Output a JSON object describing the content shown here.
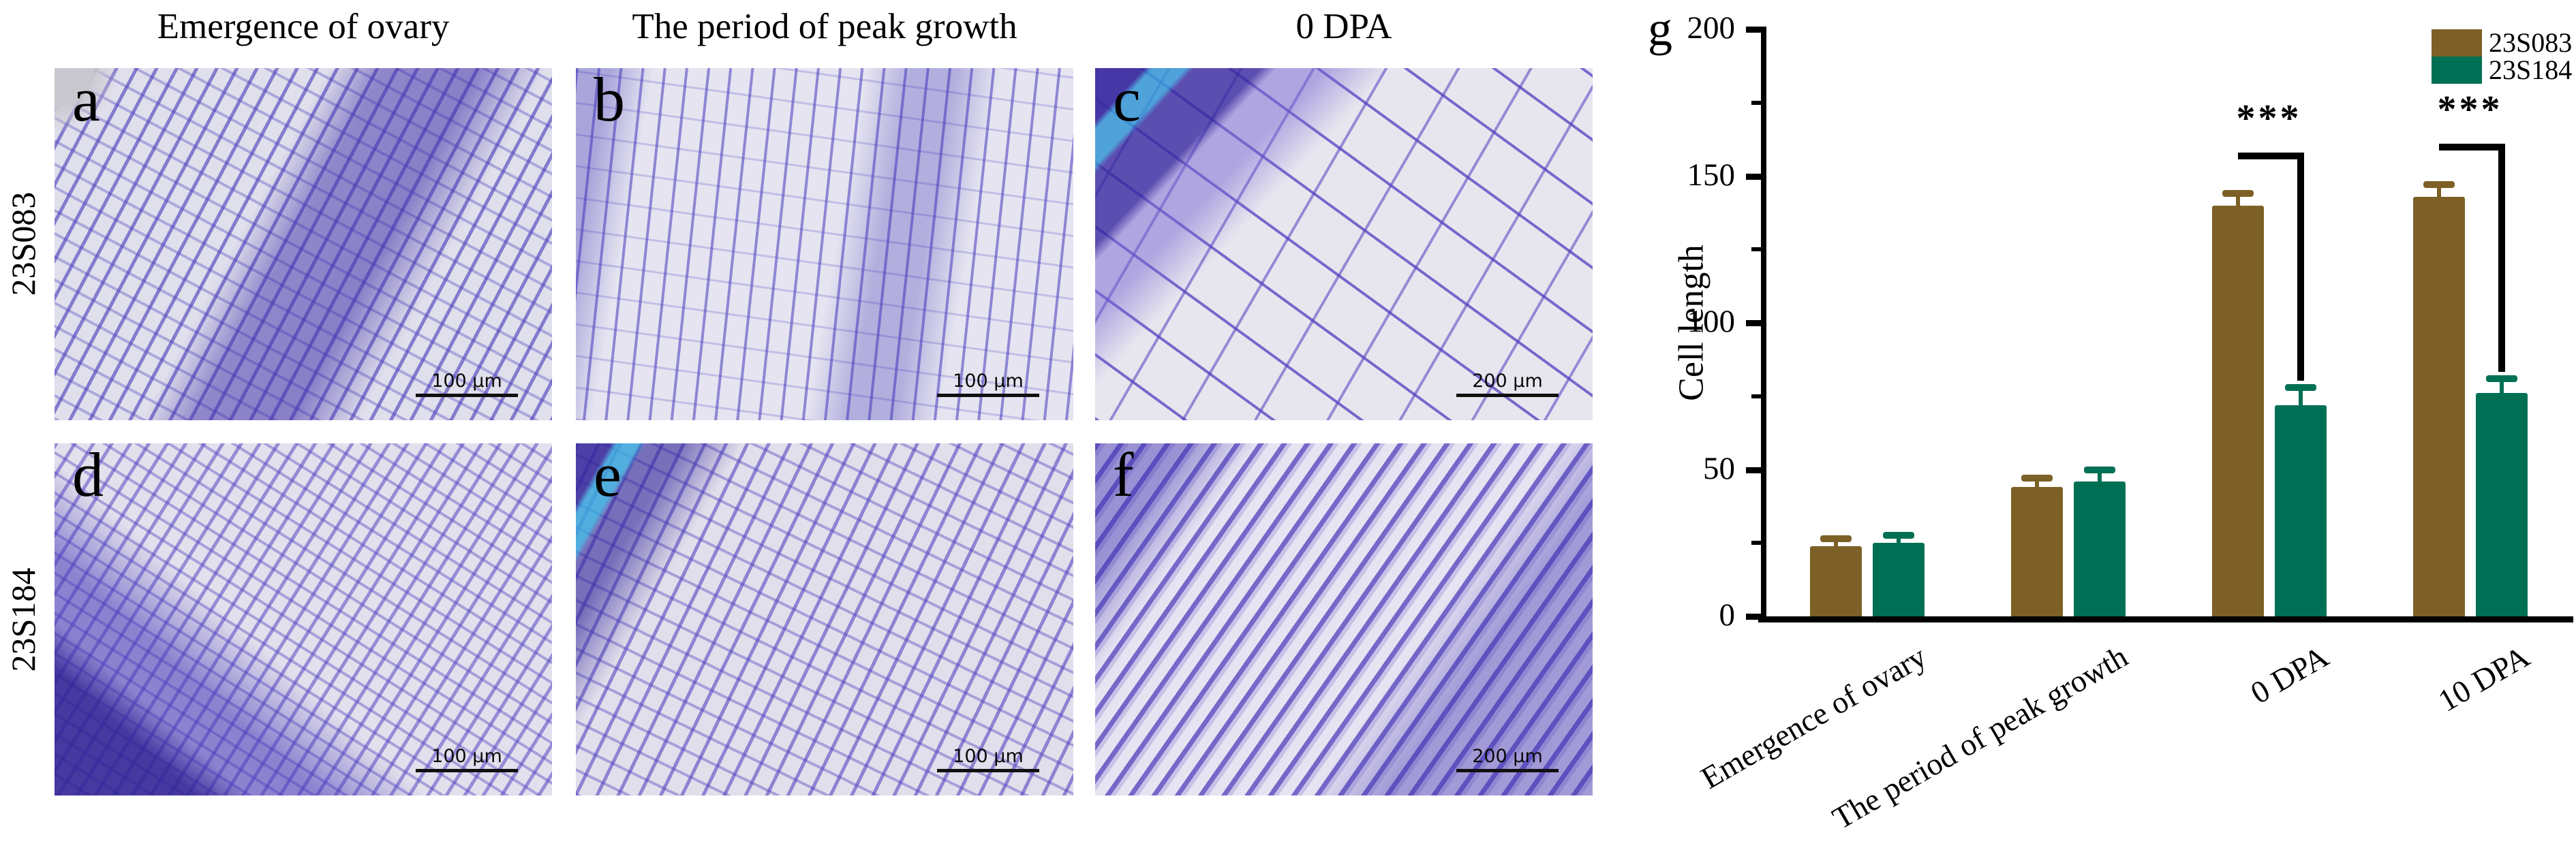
{
  "micrographs": {
    "column_headers": [
      "Emergence of ovary",
      "The period of peak growth",
      "0 DPA"
    ],
    "row_labels": [
      "23S083",
      "23S184"
    ],
    "panels": [
      {
        "letter": "a",
        "scale_bar": "100 μm"
      },
      {
        "letter": "b",
        "scale_bar": "100 μm"
      },
      {
        "letter": "c",
        "scale_bar": "200 μm"
      },
      {
        "letter": "d",
        "scale_bar": "100 μm"
      },
      {
        "letter": "e",
        "scale_bar": "100 μm"
      },
      {
        "letter": "f",
        "scale_bar": "200 μm"
      }
    ],
    "stain_palette": {
      "background": "#e3e1ee",
      "cell_wall_purple": "#4c3ebc",
      "dense_purple": "#3a2aa5",
      "cyan_streak": "#38a5dc"
    }
  },
  "chart": {
    "panel_letter": "g"
  },
  "chart_data": {
    "type": "bar",
    "title": "",
    "xlabel": "",
    "ylabel": "Cell length",
    "categories": [
      "Emergence of ovary",
      "The period of peak growth",
      "0 DPA",
      "10 DPA"
    ],
    "series": [
      {
        "name": "23S083",
        "color": "#7d6026",
        "values": [
          24,
          44,
          140,
          143
        ],
        "errors": [
          2.5,
          3,
          4,
          4
        ]
      },
      {
        "name": "23S184",
        "color": "#007054",
        "values": [
          25,
          46,
          72,
          76
        ],
        "errors": [
          2.5,
          4,
          6,
          5
        ]
      }
    ],
    "ylim": [
      0,
      200
    ],
    "yticks": [
      0,
      50,
      100,
      150,
      200
    ],
    "minor_ytick_step": 25,
    "grid": false,
    "legend_position": "top-right",
    "significance": [
      {
        "category": "0 DPA",
        "category_index": 2,
        "label": "***"
      },
      {
        "category": "10 DPA",
        "category_index": 3,
        "label": "***"
      }
    ]
  }
}
